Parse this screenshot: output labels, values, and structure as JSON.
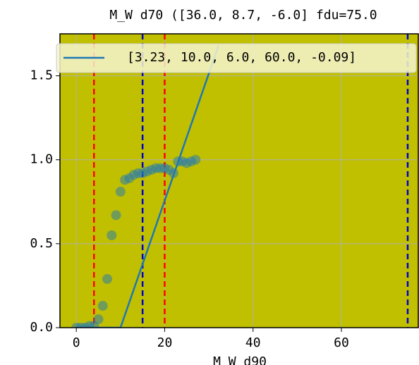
{
  "chart_data": {
    "type": "scatter",
    "title": "M_W d70 ([36.0, 8.7, -6.0] fdu=75.0",
    "xlabel": "M_W d90",
    "xlim": [
      -3.7,
      77.4
    ],
    "ylim": [
      0,
      1.75
    ],
    "xticks": [
      0,
      20,
      40,
      60
    ],
    "yticks": [
      {
        "value": 0,
        "label": "0.0"
      },
      {
        "value": 0.5,
        "label": "0.5"
      },
      {
        "value": 1.0,
        "label": "1.0"
      },
      {
        "value": 1.5,
        "label": "1.5"
      }
    ],
    "grid": true,
    "background": "#c0c000",
    "legend": "upper right",
    "series": [
      {
        "type": "line",
        "name": "[3.23, 10.0, 6.0, 60.0, -0.09]",
        "color": "#1f77b4",
        "x": [
          0,
          10,
          32.2
        ],
        "values": [
          0,
          0,
          1.68
        ]
      },
      {
        "type": "scatter",
        "color": "#1f77b4",
        "x": [
          0,
          1,
          2,
          3,
          4,
          5,
          6,
          7,
          8,
          9,
          10,
          11,
          12,
          13,
          14,
          15,
          16,
          17,
          18,
          19,
          20,
          21,
          22,
          23,
          24,
          25,
          26,
          27
        ],
        "values": [
          0,
          0,
          0,
          0.01,
          0.01,
          0.05,
          0.13,
          0.29,
          0.55,
          0.67,
          0.81,
          0.88,
          0.89,
          0.91,
          0.92,
          0.92,
          0.93,
          0.94,
          0.95,
          0.95,
          0.95,
          0.94,
          0.92,
          0.99,
          0.99,
          0.98,
          0.99,
          1.0
        ]
      }
    ],
    "vlines": [
      {
        "x": 4,
        "color": "#ff0000"
      },
      {
        "x": 20,
        "color": "#ff0000"
      },
      {
        "x": 15,
        "color": "#0000cc"
      },
      {
        "x": 75,
        "color": "#0000cc"
      }
    ]
  }
}
